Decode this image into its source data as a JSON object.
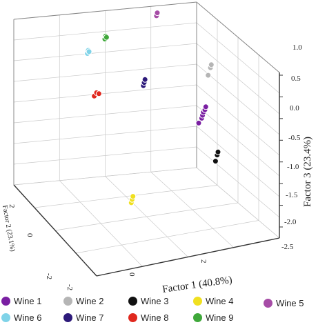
{
  "chart_data": {
    "type": "scatter",
    "projection": "3d",
    "xlabel": "Factor 1 (40.8%)",
    "ylabel": "Factor 2 (23.1%)",
    "zlabel": "Factor 3 (23.4%)",
    "x_ticks": [
      "-2",
      "0",
      "2"
    ],
    "y_ticks": [
      "-2",
      "0",
      "2"
    ],
    "z_ticks": [
      "1.0",
      "0.5",
      "0.0",
      "-0.5",
      "-1.0",
      "-1.5",
      "-2.0",
      "-2.5"
    ],
    "grid": true,
    "legend_position": "bottom",
    "series": [
      {
        "name": "Wine 1",
        "color": "#7a1fa2",
        "points": [
          [
            1.8,
            0.2,
            -0.6
          ],
          [
            1.9,
            0.2,
            -0.5
          ],
          [
            1.95,
            0.25,
            -0.45
          ],
          [
            2.0,
            0.3,
            -0.4
          ],
          [
            2.05,
            0.3,
            -0.35
          ],
          [
            2.1,
            0.35,
            -0.3
          ]
        ]
      },
      {
        "name": "Wine 2",
        "color": "#b5b5b5",
        "points": [
          [
            2.2,
            0.4,
            0.4
          ],
          [
            2.3,
            0.45,
            0.55
          ],
          [
            2.35,
            0.5,
            0.6
          ]
        ]
      },
      {
        "name": "Wine 3",
        "color": "#111111",
        "points": [
          [
            1.9,
            -0.8,
            -1.2
          ],
          [
            2.0,
            -0.7,
            -1.1
          ],
          [
            2.05,
            -0.65,
            -1.05
          ]
        ]
      },
      {
        "name": "Wine 4",
        "color": "#f0e020",
        "points": [
          [
            -1.5,
            -2.2,
            -1.3
          ],
          [
            -1.45,
            -2.15,
            -1.25
          ],
          [
            -1.4,
            -2.1,
            -1.2
          ]
        ]
      },
      {
        "name": "Wine 5",
        "color": "#a64ca6",
        "points": [
          [
            1.5,
            2.6,
            1.2
          ],
          [
            1.55,
            2.65,
            1.25
          ]
        ]
      },
      {
        "name": "Wine 6",
        "color": "#7fd3e8",
        "points": [
          [
            -1.4,
            1.2,
            1.0
          ],
          [
            -1.35,
            1.25,
            1.05
          ],
          [
            -1.3,
            1.3,
            1.0
          ]
        ]
      },
      {
        "name": "Wine 7",
        "color": "#2d1a7a",
        "points": [
          [
            0.3,
            0.9,
            0.2
          ],
          [
            0.35,
            0.95,
            0.25
          ],
          [
            0.4,
            1.0,
            0.3
          ]
        ]
      },
      {
        "name": "Wine 8",
        "color": "#e0281e",
        "points": [
          [
            -1.9,
            -0.4,
            0.6
          ],
          [
            -1.8,
            -0.35,
            0.65
          ],
          [
            -1.7,
            -0.3,
            0.6
          ]
        ]
      },
      {
        "name": "Wine 9",
        "color": "#3fa83a",
        "points": [
          [
            -0.6,
            1.7,
            1.1
          ],
          [
            -0.55,
            1.75,
            1.15
          ],
          [
            -0.5,
            1.8,
            1.1
          ]
        ]
      }
    ]
  }
}
